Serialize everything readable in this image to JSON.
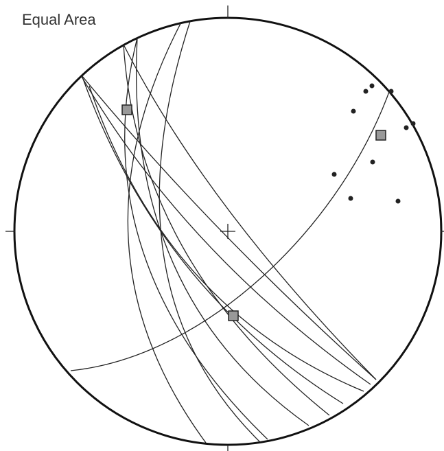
{
  "title": "Equal Area"
}
